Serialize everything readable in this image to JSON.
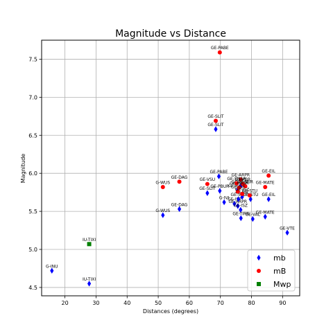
{
  "colors": {
    "mb": "#0000ff",
    "mB": "#ff0000",
    "Mwp": "#008000",
    "grid": "#b0b0b0",
    "frame": "#000000"
  },
  "chart_data": {
    "type": "scatter",
    "title": "Magnitude vs Distance",
    "xlabel": "Distances (degrees)",
    "ylabel": "Magnitude",
    "xlim": [
      12.5,
      95.5
    ],
    "ylim": [
      4.39,
      7.75
    ],
    "xticks": [
      20,
      30,
      40,
      50,
      60,
      70,
      80,
      90
    ],
    "yticks": [
      4.5,
      5.0,
      5.5,
      6.0,
      6.5,
      7.0,
      7.5
    ],
    "grid": true,
    "legend_position": "lower-right",
    "series": [
      {
        "name": "mb",
        "marker": "diamond",
        "points": [
          {
            "x": 69.5,
            "y": 5.96,
            "label": "GE-PABE"
          },
          {
            "x": 68.5,
            "y": 6.58,
            "label": "GE-SLIT"
          },
          {
            "x": 51.5,
            "y": 5.45,
            "label": "G-WUS"
          },
          {
            "x": 56.8,
            "y": 5.53,
            "label": "GE-DAG"
          },
          {
            "x": 65.8,
            "y": 5.74,
            "label": "GE-SLIT"
          },
          {
            "x": 69.8,
            "y": 5.77,
            "label": "GE-PBUR"
          },
          {
            "x": 71.2,
            "y": 5.62,
            "label": "G-IVI"
          },
          {
            "x": 74.5,
            "y": 5.6,
            "label": "GE-ISP"
          },
          {
            "x": 75.6,
            "y": 5.57,
            "label": "GE-ARPR"
          },
          {
            "x": 76.5,
            "y": 5.52,
            "label": "GE-ISZ"
          },
          {
            "x": 75.8,
            "y": 5.66,
            "label": "GE-STU"
          },
          {
            "x": 77.0,
            "y": 5.69,
            "label": "GE-EIL"
          },
          {
            "x": 76.6,
            "y": 5.41,
            "label": "GE-TIRR"
          },
          {
            "x": 80.4,
            "y": 5.4,
            "label": "GE-VAL"
          },
          {
            "x": 84.4,
            "y": 5.43,
            "label": "GE-MATE"
          },
          {
            "x": 79.7,
            "y": 5.66,
            "label": "GE-STU"
          },
          {
            "x": 85.5,
            "y": 5.66,
            "label": "GE-EIL"
          },
          {
            "x": 91.5,
            "y": 5.22,
            "label": "GE-VTE"
          },
          {
            "x": 15.8,
            "y": 4.72,
            "label": "G-INU"
          },
          {
            "x": 27.8,
            "y": 4.55,
            "label": "IU-TIXI"
          },
          {
            "x": 75.5,
            "y": 5.78,
            "label": "GE-ARPR"
          },
          {
            "x": 76.5,
            "y": 5.83,
            "label": "GE-PABE"
          }
        ]
      },
      {
        "name": "mB",
        "marker": "circle",
        "points": [
          {
            "x": 69.8,
            "y": 7.59,
            "label": "GE-PABE"
          },
          {
            "x": 68.5,
            "y": 6.69,
            "label": "GE-SLIT"
          },
          {
            "x": 56.8,
            "y": 5.89,
            "label": "GE-DAG"
          },
          {
            "x": 51.5,
            "y": 5.82,
            "label": "G-WUS"
          },
          {
            "x": 65.8,
            "y": 5.86,
            "label": "GE-VSU"
          },
          {
            "x": 76.5,
            "y": 5.92,
            "label": "GE-ARPR"
          },
          {
            "x": 75.2,
            "y": 5.87,
            "label": "GE-SNAA"
          },
          {
            "x": 77.2,
            "y": 5.86,
            "label": "GE-PBR"
          },
          {
            "x": 78.0,
            "y": 5.83,
            "label": "GE-SUR"
          },
          {
            "x": 76.0,
            "y": 5.81,
            "label": "GE-PBUR"
          },
          {
            "x": 75.6,
            "y": 5.76,
            "label": "GE-ISP"
          },
          {
            "x": 77.0,
            "y": 5.73,
            "label": "GE-ISZ"
          },
          {
            "x": 79.4,
            "y": 5.71,
            "label": "GE-STU"
          },
          {
            "x": 84.4,
            "y": 5.82,
            "label": "GE-MATE"
          },
          {
            "x": 85.5,
            "y": 5.97,
            "label": "GE-EIL"
          }
        ]
      },
      {
        "name": "Mwp",
        "marker": "square",
        "points": [
          {
            "x": 27.8,
            "y": 5.07,
            "label": "IU-TIXI"
          }
        ]
      }
    ]
  }
}
